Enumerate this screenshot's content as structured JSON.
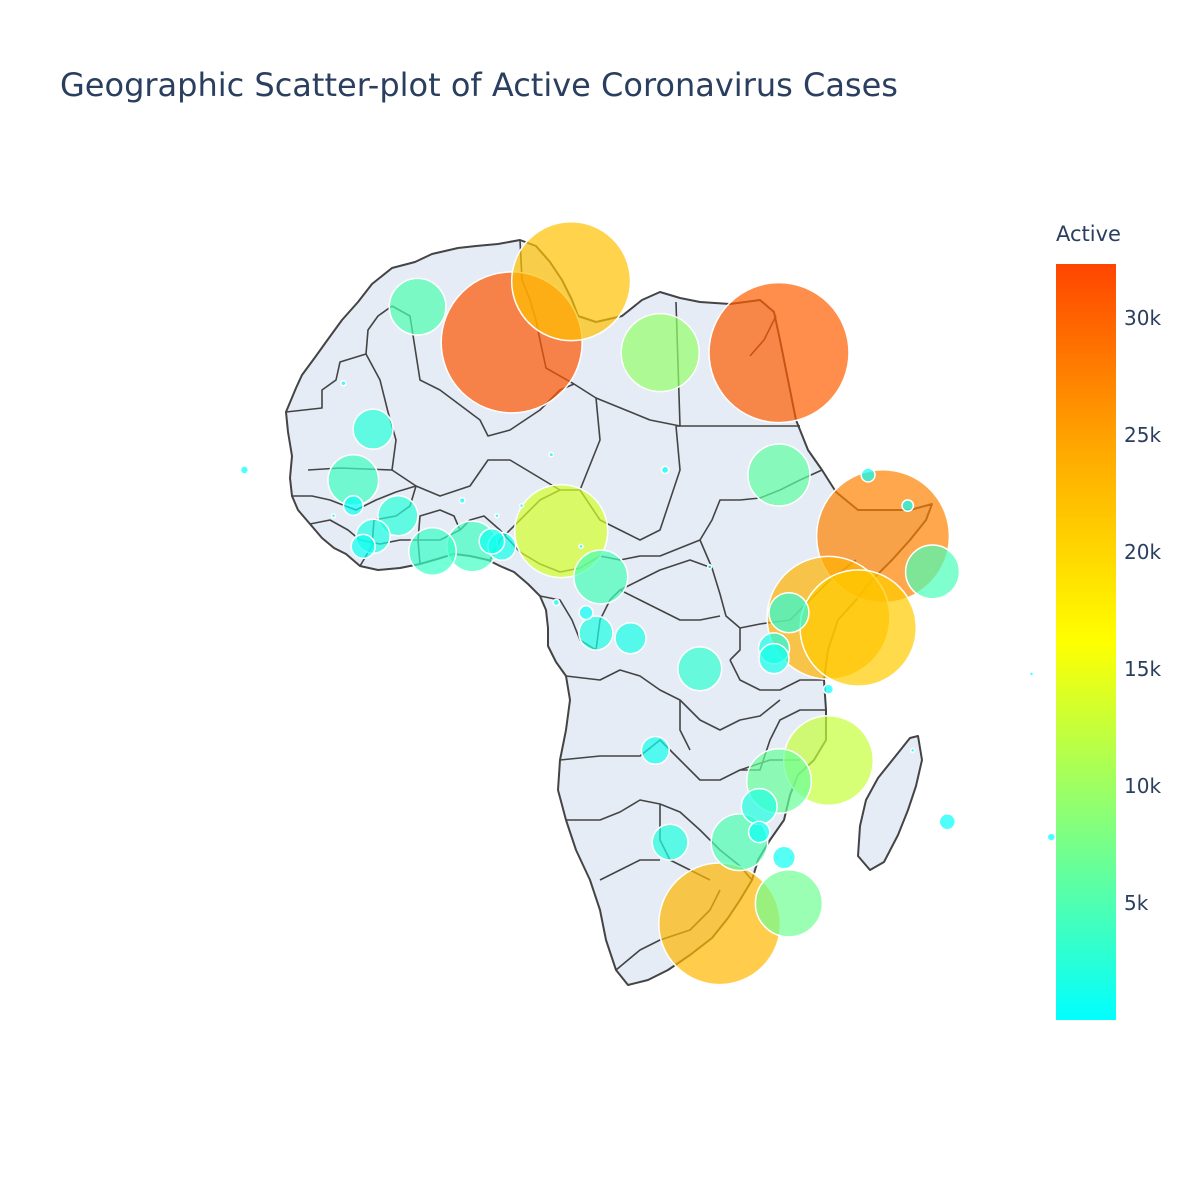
{
  "chart_data": {
    "type": "scatter",
    "subtype": "geo-bubble",
    "title": "Geographic Scatter-plot of Active Coronavirus Cases",
    "scope": "africa",
    "color_variable": "Active",
    "colorbar": {
      "title": "Active",
      "range": [
        0,
        32300
      ],
      "ticks": [
        {
          "value": 5000,
          "label": "5k"
        },
        {
          "value": 10000,
          "label": "10k"
        },
        {
          "value": 15000,
          "label": "15k"
        },
        {
          "value": 20000,
          "label": "20k"
        },
        {
          "value": 25000,
          "label": "25k"
        },
        {
          "value": 30000,
          "label": "30k"
        }
      ],
      "colorscale": [
        "#00ffff",
        "#80ff80",
        "#ffff00",
        "#ffaa00",
        "#ff4500"
      ]
    },
    "points": [
      {
        "lon": 3,
        "lat": 28,
        "active": 31000
      },
      {
        "lon": 9,
        "lat": 34,
        "active": 22000
      },
      {
        "lon": 30,
        "lat": 27,
        "active": 30500
      },
      {
        "lon": 18,
        "lat": 27,
        "active": 9500
      },
      {
        "lon": -6.5,
        "lat": 31.5,
        "active": 5000
      },
      {
        "lon": 40.5,
        "lat": 9,
        "active": 27500
      },
      {
        "lon": 35,
        "lat": 1,
        "active": 23500
      },
      {
        "lon": 38,
        "lat": 0,
        "active": 21000
      },
      {
        "lon": 24,
        "lat": -29,
        "active": 23000
      },
      {
        "lon": 8,
        "lat": 9.5,
        "active": 13500
      },
      {
        "lon": 35,
        "lat": -13,
        "active": 12500
      },
      {
        "lon": 30,
        "lat": -15,
        "active": 6500
      },
      {
        "lon": 30,
        "lat": 15,
        "active": 6000
      },
      {
        "lon": 31,
        "lat": -27,
        "active": 7000
      },
      {
        "lon": 45.5,
        "lat": 5.5,
        "active": 4500
      },
      {
        "lon": 26,
        "lat": -21,
        "active": 5000
      },
      {
        "lon": 12,
        "lat": 5,
        "active": 4500
      },
      {
        "lon": -1,
        "lat": 8,
        "active": 4000
      },
      {
        "lon": -5,
        "lat": 7.5,
        "active": 3500
      },
      {
        "lon": -13,
        "lat": 14.5,
        "active": 4000
      },
      {
        "lon": 22,
        "lat": -4,
        "active": 3000
      },
      {
        "lon": -11,
        "lat": 19.5,
        "active": 2500
      },
      {
        "lon": -8.5,
        "lat": 11,
        "active": 2500
      },
      {
        "lon": 19,
        "lat": -21,
        "active": 2000
      },
      {
        "lon": 31,
        "lat": 1.5,
        "active": 2500
      },
      {
        "lon": 28,
        "lat": -17.5,
        "active": 2000
      },
      {
        "lon": 11.5,
        "lat": -0.5,
        "active": 1800
      },
      {
        "lon": 15,
        "lat": -1,
        "active": 1500
      },
      {
        "lon": 17.5,
        "lat": -12,
        "active": 1200
      },
      {
        "lon": -11,
        "lat": 9,
        "active": 1800
      },
      {
        "lon": 29.5,
        "lat": -2,
        "active": 1500
      },
      {
        "lon": 29.5,
        "lat": -3,
        "active": 1400
      },
      {
        "lon": 2,
        "lat": 8,
        "active": 1200
      },
      {
        "lon": 1,
        "lat": 8.5,
        "active": 1000
      },
      {
        "lon": 30.5,
        "lat": -22.5,
        "active": 800
      },
      {
        "lon": 28,
        "lat": -20,
        "active": 700
      },
      {
        "lon": -12,
        "lat": 8,
        "active": 900
      },
      {
        "lon": -13,
        "lat": 12,
        "active": 600
      },
      {
        "lon": 47,
        "lat": -19,
        "active": 400
      },
      {
        "lon": 10.5,
        "lat": 1.5,
        "active": 300
      },
      {
        "lon": 39,
        "lat": 15,
        "active": 300
      },
      {
        "lon": 43,
        "lat": 12,
        "active": 200
      },
      {
        "lon": 35,
        "lat": -6,
        "active": 150
      },
      {
        "lon": 57.5,
        "lat": -20.5,
        "active": 100
      },
      {
        "lon": -24,
        "lat": 15.5,
        "active": 100
      },
      {
        "lon": 18.5,
        "lat": 15.5,
        "active": 80
      },
      {
        "lon": 7.5,
        "lat": 2.5,
        "active": 60
      },
      {
        "lon": -2,
        "lat": 12.5,
        "active": 50
      },
      {
        "lon": -14,
        "lat": 24,
        "active": 40
      },
      {
        "lon": 7,
        "lat": 17,
        "active": 30
      },
      {
        "lon": 55.5,
        "lat": -4.5,
        "active": 20
      },
      {
        "lon": 1.5,
        "lat": 11,
        "active": 15
      },
      {
        "lon": 23,
        "lat": 6,
        "active": 10
      },
      {
        "lon": -15,
        "lat": 11,
        "active": 8
      },
      {
        "lon": 43.5,
        "lat": -12,
        "active": 5
      },
      {
        "lon": 4,
        "lat": 12,
        "active": 5
      },
      {
        "lon": 10,
        "lat": 8,
        "active": 5
      }
    ]
  }
}
